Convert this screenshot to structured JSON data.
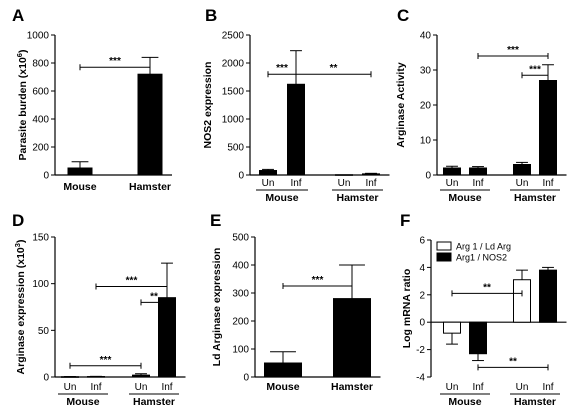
{
  "chart_data": [
    {
      "type": "bar",
      "panel_label": "A",
      "ylabel": "Parasite burden (x10 6)",
      "ylabel_main": "Parasite burden (x10",
      "ylabel_sup": "6",
      "ylabel_tail": ")",
      "ylim": [
        0,
        1000
      ],
      "yticks": [
        "0",
        "200",
        "400",
        "600",
        "800",
        "1000"
      ],
      "ytick_values": [
        0,
        200,
        400,
        600,
        800,
        1000
      ],
      "categories": [
        "Mouse",
        "Hamster"
      ],
      "series": [
        {
          "values": [
            50,
            720
          ],
          "errors": [
            45,
            120
          ],
          "color": "#000000"
        }
      ],
      "significance": [
        {
          "from": 0,
          "to": 1,
          "label": "***",
          "y": 770
        }
      ]
    },
    {
      "type": "bar",
      "panel_label": "B",
      "ylabel": "NOS2 expression",
      "ylim": [
        0,
        2500
      ],
      "yticks": [
        "0",
        "500",
        "1000",
        "1500",
        "2000",
        "2500"
      ],
      "ytick_values": [
        0,
        500,
        1000,
        1500,
        2000,
        2500
      ],
      "categories": [
        "Un",
        "Inf",
        "Un",
        "Inf"
      ],
      "groups": [
        "Mouse",
        "Hamster"
      ],
      "series": [
        {
          "values": [
            80,
            1620,
            5,
            20
          ],
          "errors": [
            20,
            600,
            0,
            10
          ],
          "color": "#000000"
        }
      ],
      "significance": [
        {
          "from": 0,
          "to": 1,
          "label": "***",
          "y": 1800
        },
        {
          "from": 1,
          "to": 3,
          "label": "**",
          "y": 1800
        }
      ]
    },
    {
      "type": "bar",
      "panel_label": "C",
      "ylabel": "Arginase Activity",
      "ylim": [
        0,
        40
      ],
      "yticks": [
        "0",
        "10",
        "20",
        "30",
        "40"
      ],
      "ytick_values": [
        0,
        10,
        20,
        30,
        40
      ],
      "categories": [
        "Un",
        "Inf",
        "Un",
        "Inf"
      ],
      "groups": [
        "Mouse",
        "Hamster"
      ],
      "series": [
        {
          "values": [
            2,
            2,
            3,
            27
          ],
          "errors": [
            0.5,
            0.4,
            0.6,
            4.5
          ],
          "color": "#000000"
        }
      ],
      "significance": [
        {
          "from": 1,
          "to": 3,
          "label": "***",
          "y": 34
        },
        {
          "from": 2,
          "to": 3,
          "label": "***",
          "y": 28.5
        }
      ]
    },
    {
      "type": "bar",
      "panel_label": "D",
      "ylabel": "Arginase expression (x10 3)",
      "ylabel_main": "Arginase expression (x10",
      "ylabel_sup": "3",
      "ylabel_tail": ")",
      "ylim": [
        0,
        150
      ],
      "yticks": [
        "0",
        "50",
        "100",
        "150"
      ],
      "ytick_values": [
        0,
        50,
        100,
        150
      ],
      "categories": [
        "Un",
        "Inf",
        "Un",
        "Inf"
      ],
      "groups": [
        "Mouse",
        "Hamster"
      ],
      "series": [
        {
          "values": [
            0.3,
            0.5,
            2,
            85
          ],
          "errors": [
            0.2,
            0.2,
            1.5,
            37
          ],
          "color": "#000000"
        }
      ],
      "significance": [
        {
          "from": 1,
          "to": 3,
          "label": "***",
          "y": 97
        },
        {
          "from": 2,
          "to": 3,
          "label": "**",
          "y": 80
        },
        {
          "from": 0,
          "to": 2,
          "label": "***",
          "y": 12
        }
      ]
    },
    {
      "type": "bar",
      "panel_label": "E",
      "ylabel": "Ld Arginase expression",
      "ylim": [
        0,
        500
      ],
      "yticks": [
        "0",
        "100",
        "200",
        "300",
        "400",
        "500"
      ],
      "ytick_values": [
        0,
        100,
        200,
        300,
        400,
        500
      ],
      "categories": [
        "Mouse",
        "Hamster"
      ],
      "series": [
        {
          "values": [
            50,
            280
          ],
          "errors": [
            40,
            120
          ],
          "color": "#000000"
        }
      ],
      "significance": [
        {
          "from": 0,
          "to": 1,
          "label": "***",
          "y": 325
        }
      ]
    },
    {
      "type": "bar",
      "panel_label": "F",
      "ylabel": "Log mRNA ratio",
      "ylim": [
        -4,
        6
      ],
      "yticks": [
        "-4",
        "-2",
        "0",
        "2",
        "4",
        "6"
      ],
      "ytick_values": [
        -4,
        -2,
        0,
        2,
        4,
        6
      ],
      "categories": [
        "Un",
        "Inf",
        "Un",
        "Inf"
      ],
      "groups": [
        "Mouse",
        "Hamster"
      ],
      "legend_position": "top-left",
      "series": [
        {
          "name": "Arg 1 / Ld Arg",
          "values": [
            -0.8,
            null,
            3.1,
            null
          ],
          "errors": [
            0.8,
            null,
            0.7,
            null
          ],
          "color": "#ffffff"
        },
        {
          "name": "Arg1 / NOS2",
          "values": [
            null,
            -2.3,
            null,
            3.8
          ],
          "errors": [
            null,
            0.5,
            null,
            0.2
          ],
          "color": "#000000"
        }
      ],
      "significance": [
        {
          "from": 0,
          "to": 2,
          "label": "**",
          "y": 2.1
        },
        {
          "from": 1,
          "to": 3,
          "label": "**",
          "y": -3.3
        }
      ]
    }
  ]
}
